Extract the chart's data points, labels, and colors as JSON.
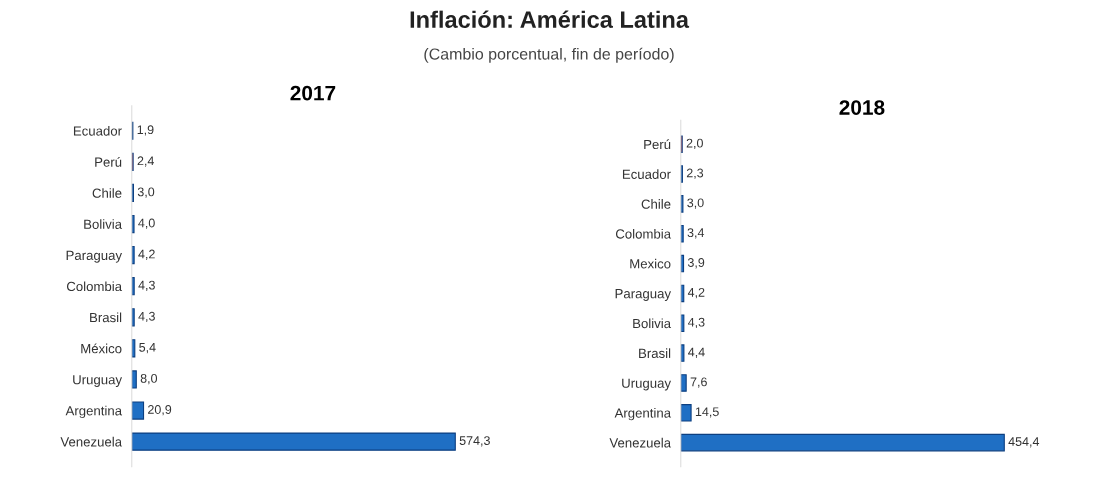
{
  "chart_data": [
    {
      "type": "bar",
      "orientation": "horizontal",
      "title": "2017",
      "annotations": [
        "Inflación: América Latina",
        "(Cambio porcentual, fin de período)"
      ],
      "categories": [
        "Ecuador",
        "Perú",
        "Chile",
        "Bolivia",
        "Paraguay",
        "Colombia",
        "Brasil",
        "México",
        "Uruguay",
        "Argentina",
        "Venezuela"
      ],
      "values": [
        1.9,
        2.4,
        3.0,
        4.0,
        4.2,
        4.3,
        4.3,
        5.4,
        8.0,
        20.9,
        574.3
      ],
      "value_labels": [
        "1,9",
        "2,4",
        "3,0",
        "4,0",
        "4,2",
        "4,3",
        "4,3",
        "5,4",
        "8,0",
        "20,9",
        "574,3"
      ],
      "colors": [
        "#1f6fc4",
        "#e81010",
        "#1f6fc4",
        "#1f6fc4",
        "#1f6fc4",
        "#1f6fc4",
        "#1f6fc4",
        "#1f6fc4",
        "#1f6fc4",
        "#1f6fc4",
        "#1f6fc4"
      ],
      "tick_labels": "y"
    },
    {
      "type": "bar",
      "orientation": "horizontal",
      "title": "2018",
      "categories": [
        "Perú",
        "Ecuador",
        "Chile",
        "Colombia",
        "Mexico",
        "Paraguay",
        "Bolivia",
        "Brasil",
        "Uruguay",
        "Argentina",
        "Venezuela"
      ],
      "values": [
        2.0,
        2.3,
        3.0,
        3.4,
        3.9,
        4.2,
        4.3,
        4.4,
        7.6,
        14.5,
        454.4
      ],
      "value_labels": [
        "2,0",
        "2,3",
        "3,0",
        "3,4",
        "3,9",
        "4,2",
        "4,3",
        "4,4",
        "7,6",
        "14,5",
        "454,4"
      ],
      "colors": [
        "#e81010",
        "#1f6fc4",
        "#1f6fc4",
        "#1f6fc4",
        "#1f6fc4",
        "#1f6fc4",
        "#1f6fc4",
        "#1f6fc4",
        "#1f6fc4",
        "#1f6fc4",
        "#1f6fc4"
      ],
      "tick_labels": "y"
    }
  ]
}
